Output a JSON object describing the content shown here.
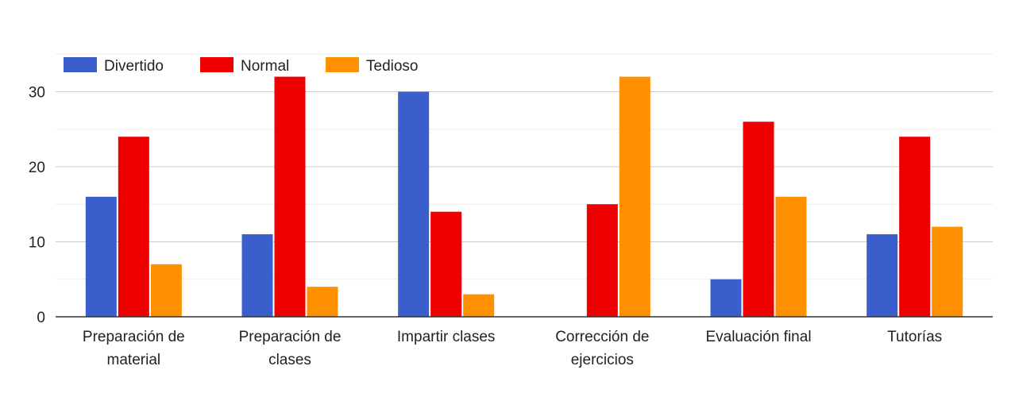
{
  "chart_data": {
    "type": "bar",
    "categories": [
      [
        "Preparación de",
        "material"
      ],
      [
        "Preparación de",
        "clases"
      ],
      [
        "Impartir clases"
      ],
      [
        "Corrección de",
        "ejercicios"
      ],
      [
        "Evaluación final"
      ],
      [
        "Tutorías"
      ]
    ],
    "series": [
      {
        "name": "Divertido",
        "color": "#3a5fcd",
        "values": [
          16,
          11,
          30,
          0,
          5,
          11
        ]
      },
      {
        "name": "Normal",
        "color": "#ee0000",
        "values": [
          24,
          32,
          14,
          15,
          26,
          24
        ]
      },
      {
        "name": "Tedioso",
        "color": "#ff9100",
        "values": [
          7,
          4,
          3,
          32,
          16,
          12
        ]
      }
    ],
    "ylim": [
      0,
      35
    ],
    "yticks": [
      0,
      10,
      20,
      30
    ],
    "grid": true,
    "legend_position": "top-left"
  }
}
